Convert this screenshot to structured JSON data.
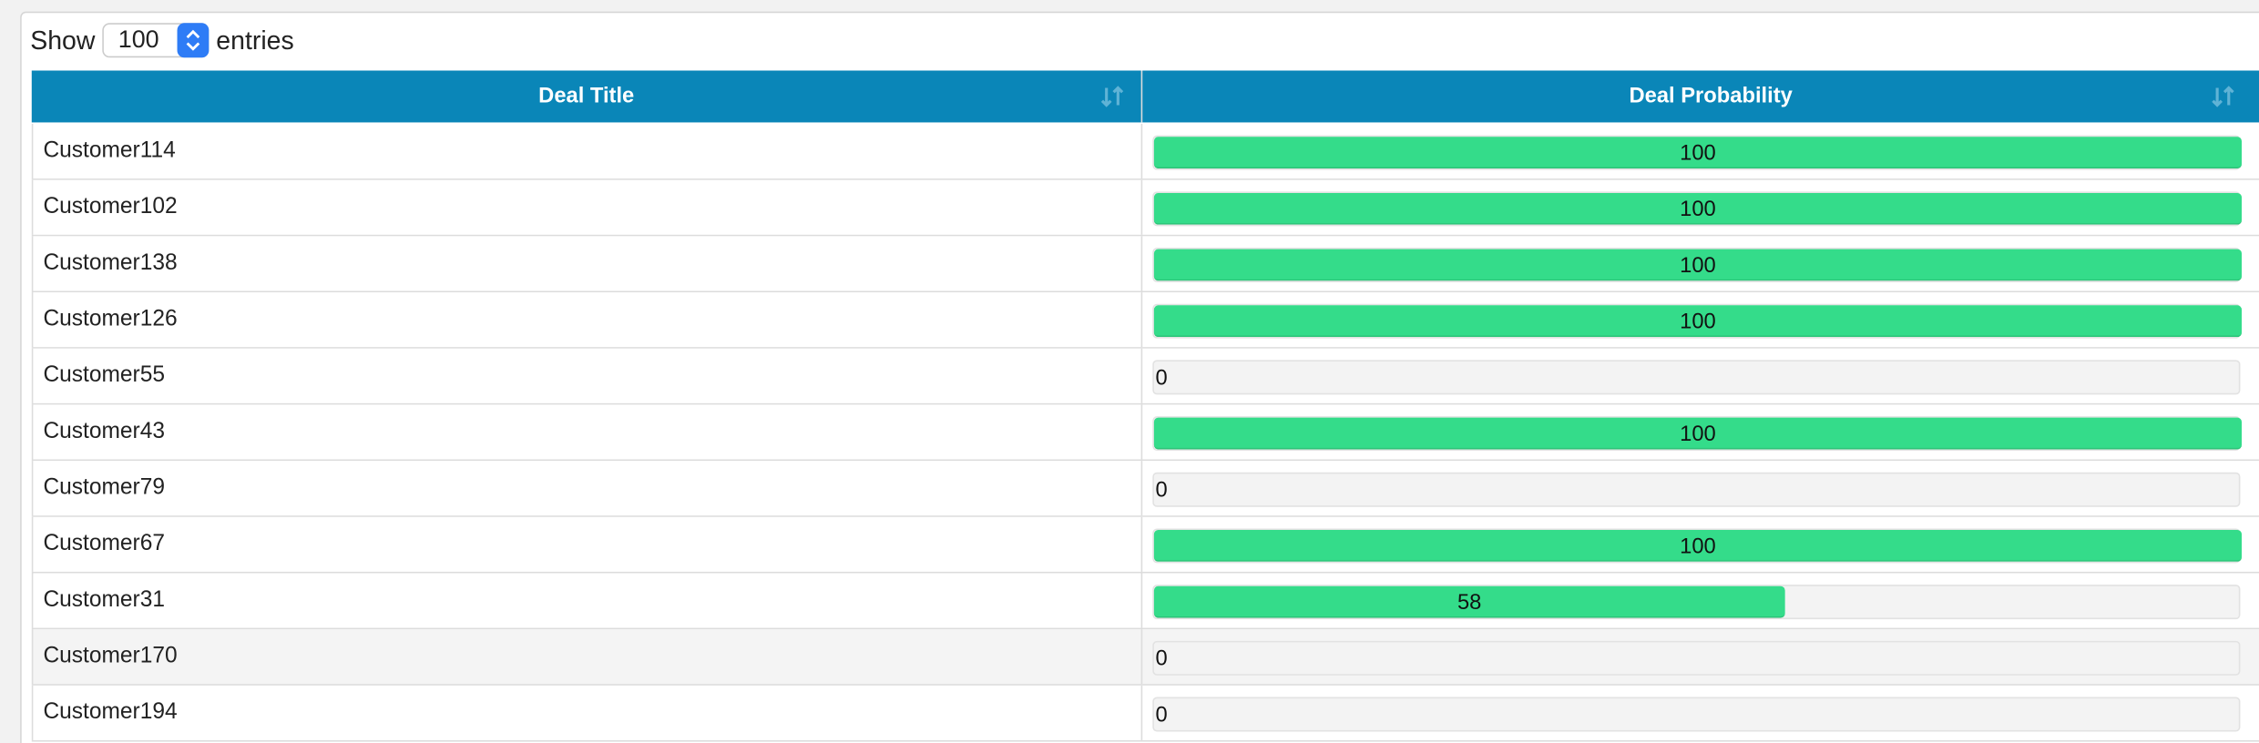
{
  "length_menu": {
    "label_before": "Show",
    "selected": "100",
    "label_after": "entries"
  },
  "table": {
    "columns": [
      "Deal Title",
      "Deal Probability"
    ],
    "rows": [
      {
        "title": "Customer114",
        "probability": 100
      },
      {
        "title": "Customer102",
        "probability": 100
      },
      {
        "title": "Customer138",
        "probability": 100
      },
      {
        "title": "Customer126",
        "probability": 100
      },
      {
        "title": "Customer55",
        "probability": 0
      },
      {
        "title": "Customer43",
        "probability": 100
      },
      {
        "title": "Customer79",
        "probability": 0
      },
      {
        "title": "Customer67",
        "probability": 100
      },
      {
        "title": "Customer31",
        "probability": 58
      },
      {
        "title": "Customer170",
        "probability": 0
      },
      {
        "title": "Customer194",
        "probability": 0
      }
    ]
  }
}
